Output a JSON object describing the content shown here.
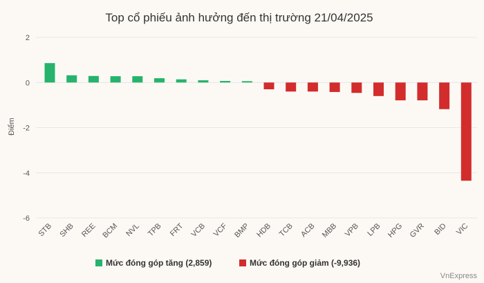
{
  "chart_data": {
    "type": "bar",
    "title": "Top cổ phiếu ảnh hưởng đến thị trường 21/04/2025",
    "ylabel": "Điểm",
    "xlabel": "",
    "ylim": [
      -6,
      2
    ],
    "yticks": [
      2,
      0,
      -2,
      -4,
      -6
    ],
    "grid": true,
    "legend_position": "bottom",
    "categories": [
      "STB",
      "SHB",
      "REE",
      "BCM",
      "NVL",
      "TPB",
      "FRT",
      "VCB",
      "VCF",
      "BMP",
      "HDB",
      "TCB",
      "ACB",
      "MBB",
      "VPB",
      "LPB",
      "HPG",
      "GVR",
      "BID",
      "VIC"
    ],
    "values": [
      0.86,
      0.32,
      0.29,
      0.28,
      0.28,
      0.19,
      0.14,
      0.1,
      0.07,
      0.06,
      -0.3,
      -0.4,
      -0.4,
      -0.42,
      -0.46,
      -0.6,
      -0.79,
      -0.79,
      -1.18,
      -4.35
    ],
    "series": [
      {
        "name": "Mức đóng góp tăng (2,859)",
        "color": "#27b36b"
      },
      {
        "name": "Mức đóng góp giảm (-9,936)",
        "color": "#d22c2c"
      }
    ],
    "credit": "VnExpress"
  }
}
